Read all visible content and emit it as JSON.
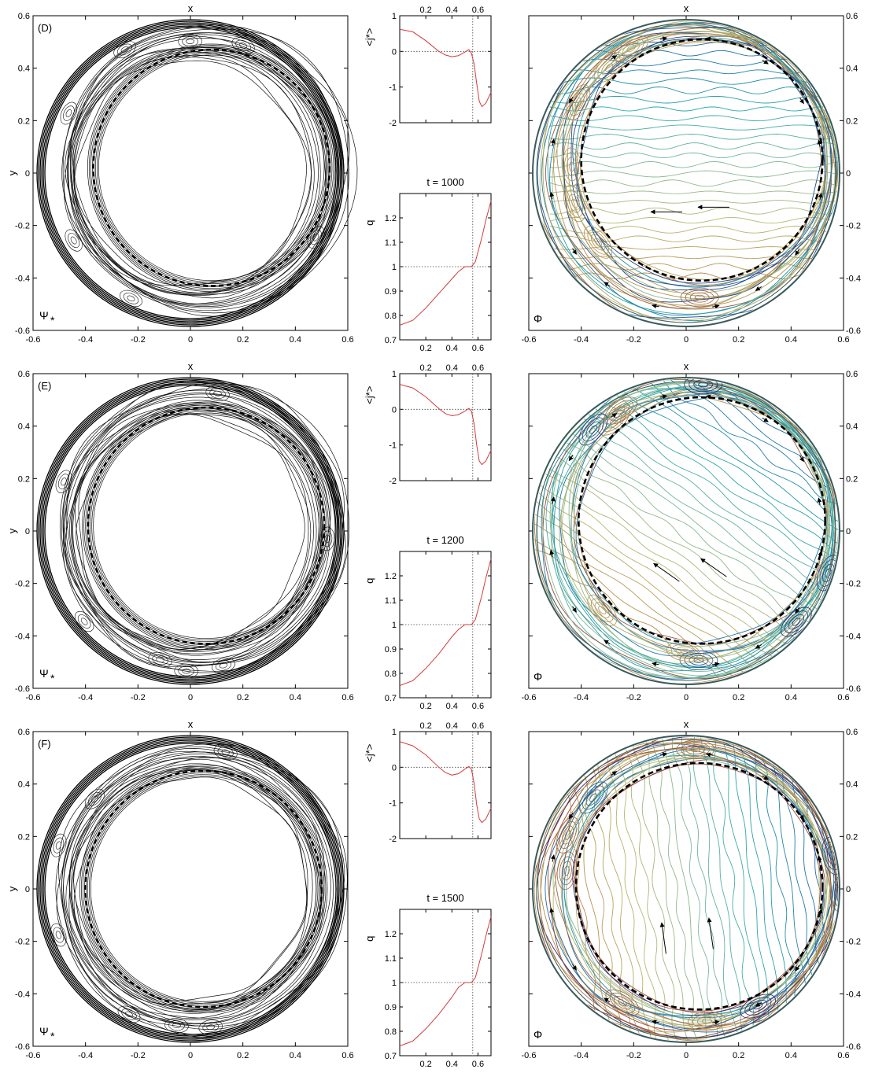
{
  "chart_data": {
    "type": "composite-figure",
    "rows": [
      {
        "panel_letter": "(D)",
        "time_label": "t = 1000",
        "psi": {
          "type": "contour",
          "xlabel": "x",
          "ylabel": "y",
          "field_label": "Ψ",
          "field_sub": "*",
          "xlim": [
            -0.6,
            0.6
          ],
          "ylim": [
            -0.6,
            0.6
          ],
          "xticks": [
            -0.6,
            -0.4,
            -0.2,
            0,
            0.2,
            0.4,
            0.6
          ],
          "yticks": [
            -0.6,
            -0.4,
            -0.2,
            0,
            0.2,
            0.4,
            0.6
          ],
          "dashed_circle_center": [
            0.08,
            0.02
          ],
          "dashed_circle_radius": 0.45
        },
        "j_profile": {
          "type": "line",
          "ylabel": "<j*>",
          "xlim": [
            0,
            0.7
          ],
          "ylim": [
            -2,
            1
          ],
          "xticks": [
            0.2,
            0.4,
            0.6
          ],
          "yticks": [
            -2,
            -1,
            0,
            1
          ],
          "x": [
            0.0,
            0.1,
            0.2,
            0.3,
            0.35,
            0.4,
            0.45,
            0.5,
            0.53,
            0.55,
            0.57,
            0.59,
            0.61,
            0.63,
            0.66,
            0.7
          ],
          "values": [
            0.62,
            0.55,
            0.3,
            0.0,
            -0.1,
            -0.15,
            -0.12,
            -0.02,
            0.05,
            -0.05,
            -0.35,
            -0.9,
            -1.4,
            -1.55,
            -1.45,
            -1.15
          ],
          "vline_x": 0.56,
          "hline_y": 0
        },
        "q_profile": {
          "type": "line",
          "ylabel": "q",
          "xlim": [
            0,
            0.7
          ],
          "ylim": [
            0.7,
            1.3
          ],
          "xticks": [
            0.2,
            0.4,
            0.6
          ],
          "yticks": [
            0.7,
            0.8,
            0.9,
            1,
            1.1,
            1.2
          ],
          "x": [
            0.0,
            0.1,
            0.2,
            0.3,
            0.4,
            0.45,
            0.5,
            0.55,
            0.58,
            0.6,
            0.63,
            0.66,
            0.7
          ],
          "values": [
            0.76,
            0.78,
            0.83,
            0.89,
            0.95,
            0.98,
            1.0,
            1.0,
            1.02,
            1.06,
            1.12,
            1.19,
            1.27
          ],
          "vline_x": 0.56,
          "hline_y": 1
        },
        "phi": {
          "type": "contour",
          "xlabel": "x",
          "field_label": "Φ",
          "xlim": [
            -0.6,
            0.6
          ],
          "ylim": [
            -0.6,
            0.6
          ],
          "xticks": [
            -0.6,
            -0.4,
            -0.2,
            0,
            0.2,
            0.4,
            0.6
          ],
          "yticks": [
            -0.6,
            -0.4,
            -0.2,
            0,
            0.2,
            0.4,
            0.6
          ],
          "dashed_circle_center": [
            0.06,
            0.05
          ],
          "dashed_circle_radius": 0.46,
          "contour_angle_deg": 0
        }
      },
      {
        "panel_letter": "(E)",
        "time_label": "t = 1200",
        "psi": {
          "type": "contour",
          "xlabel": "x",
          "ylabel": "y",
          "field_label": "Ψ",
          "field_sub": "*",
          "xlim": [
            -0.6,
            0.6
          ],
          "ylim": [
            -0.6,
            0.6
          ],
          "xticks": [
            -0.6,
            -0.4,
            -0.2,
            0,
            0.2,
            0.4,
            0.6
          ],
          "yticks": [
            -0.6,
            -0.4,
            -0.2,
            0,
            0.2,
            0.4,
            0.6
          ],
          "dashed_circle_center": [
            0.06,
            0.02
          ],
          "dashed_circle_radius": 0.45
        },
        "j_profile": {
          "type": "line",
          "ylabel": "<j*>",
          "xlim": [
            0,
            0.7
          ],
          "ylim": [
            -2,
            1
          ],
          "xticks": [
            0.2,
            0.4,
            0.6
          ],
          "yticks": [
            -2,
            -1,
            0,
            1
          ],
          "x": [
            0.0,
            0.1,
            0.2,
            0.3,
            0.35,
            0.4,
            0.45,
            0.5,
            0.53,
            0.55,
            0.57,
            0.59,
            0.61,
            0.63,
            0.66,
            0.7
          ],
          "values": [
            0.7,
            0.6,
            0.35,
            0.02,
            -0.12,
            -0.18,
            -0.15,
            -0.05,
            0.03,
            -0.05,
            -0.4,
            -1.0,
            -1.45,
            -1.55,
            -1.45,
            -1.15
          ],
          "vline_x": 0.56,
          "hline_y": 0
        },
        "q_profile": {
          "type": "line",
          "ylabel": "q",
          "xlim": [
            0,
            0.7
          ],
          "ylim": [
            0.7,
            1.3
          ],
          "xticks": [
            0.2,
            0.4,
            0.6
          ],
          "yticks": [
            0.7,
            0.8,
            0.9,
            1,
            1.1,
            1.2
          ],
          "x": [
            0.0,
            0.1,
            0.2,
            0.3,
            0.4,
            0.45,
            0.5,
            0.55,
            0.58,
            0.6,
            0.63,
            0.66,
            0.7
          ],
          "values": [
            0.75,
            0.77,
            0.82,
            0.88,
            0.95,
            0.98,
            1.0,
            1.0,
            1.02,
            1.06,
            1.12,
            1.19,
            1.27
          ],
          "vline_x": 0.56,
          "hline_y": 1
        },
        "phi": {
          "type": "contour",
          "xlabel": "x",
          "field_label": "Φ",
          "xlim": [
            -0.6,
            0.6
          ],
          "ylim": [
            -0.6,
            0.6
          ],
          "xticks": [
            -0.6,
            -0.4,
            -0.2,
            0,
            0.2,
            0.4,
            0.6
          ],
          "yticks": [
            -0.6,
            -0.4,
            -0.2,
            0,
            0.2,
            0.4,
            0.6
          ],
          "dashed_circle_center": [
            0.06,
            0.04
          ],
          "dashed_circle_radius": 0.47,
          "contour_angle_deg": 35
        }
      },
      {
        "panel_letter": "(F)",
        "time_label": "t = 1500",
        "psi": {
          "type": "contour",
          "xlabel": "x",
          "ylabel": "y",
          "field_label": "Ψ",
          "field_sub": "*",
          "xlim": [
            -0.6,
            0.6
          ],
          "ylim": [
            -0.6,
            0.6
          ],
          "xticks": [
            -0.6,
            -0.4,
            -0.2,
            0,
            0.2,
            0.4,
            0.6
          ],
          "yticks": [
            -0.6,
            -0.4,
            -0.2,
            0,
            0.2,
            0.4,
            0.6
          ],
          "dashed_circle_center": [
            0.05,
            0.0
          ],
          "dashed_circle_radius": 0.45
        },
        "j_profile": {
          "type": "line",
          "ylabel": "<j*>",
          "xlim": [
            0,
            0.7
          ],
          "ylim": [
            -2,
            1
          ],
          "xticks": [
            0.2,
            0.4,
            0.6
          ],
          "yticks": [
            -2,
            -1,
            0,
            1
          ],
          "x": [
            0.0,
            0.1,
            0.2,
            0.3,
            0.35,
            0.4,
            0.45,
            0.5,
            0.53,
            0.55,
            0.57,
            0.59,
            0.61,
            0.63,
            0.66,
            0.7
          ],
          "values": [
            0.72,
            0.6,
            0.35,
            0.0,
            -0.15,
            -0.22,
            -0.18,
            -0.05,
            0.02,
            -0.05,
            -0.45,
            -1.05,
            -1.45,
            -1.55,
            -1.45,
            -1.15
          ],
          "vline_x": 0.56,
          "hline_y": 0
        },
        "q_profile": {
          "type": "line",
          "ylabel": "q",
          "xlim": [
            0,
            0.7
          ],
          "ylim": [
            0.7,
            1.3
          ],
          "xticks": [
            0.2,
            0.4,
            0.6
          ],
          "yticks": [
            0.7,
            0.8,
            0.9,
            1,
            1.1,
            1.2
          ],
          "x": [
            0.0,
            0.1,
            0.2,
            0.3,
            0.4,
            0.45,
            0.5,
            0.55,
            0.58,
            0.6,
            0.63,
            0.66,
            0.7
          ],
          "values": [
            0.74,
            0.76,
            0.81,
            0.87,
            0.94,
            0.98,
            1.0,
            1.0,
            1.02,
            1.06,
            1.12,
            1.19,
            1.27
          ],
          "vline_x": 0.56,
          "hline_y": 1
        },
        "phi": {
          "type": "contour",
          "xlabel": "x",
          "field_label": "Φ",
          "xlim": [
            -0.6,
            0.6
          ],
          "ylim": [
            -0.6,
            0.6
          ],
          "xticks": [
            -0.6,
            -0.4,
            -0.2,
            0,
            0.2,
            0.4,
            0.6
          ],
          "yticks": [
            -0.6,
            -0.4,
            -0.2,
            0,
            0.2,
            0.4,
            0.6
          ],
          "dashed_circle_center": [
            0.05,
            0.01
          ],
          "dashed_circle_radius": 0.47,
          "contour_angle_deg": 82
        }
      }
    ],
    "colors": {
      "axis": "#000000",
      "profile_line": "#d23c3c",
      "guide_line": "#444444",
      "dashed_circle": "#000000",
      "outer_ring": "#000000",
      "phi_colormap": [
        "#2b1f6b",
        "#1f6fa8",
        "#2aa7a8",
        "#7fb99a",
        "#b8b870",
        "#b58a4a",
        "#8a3a3a"
      ]
    }
  }
}
